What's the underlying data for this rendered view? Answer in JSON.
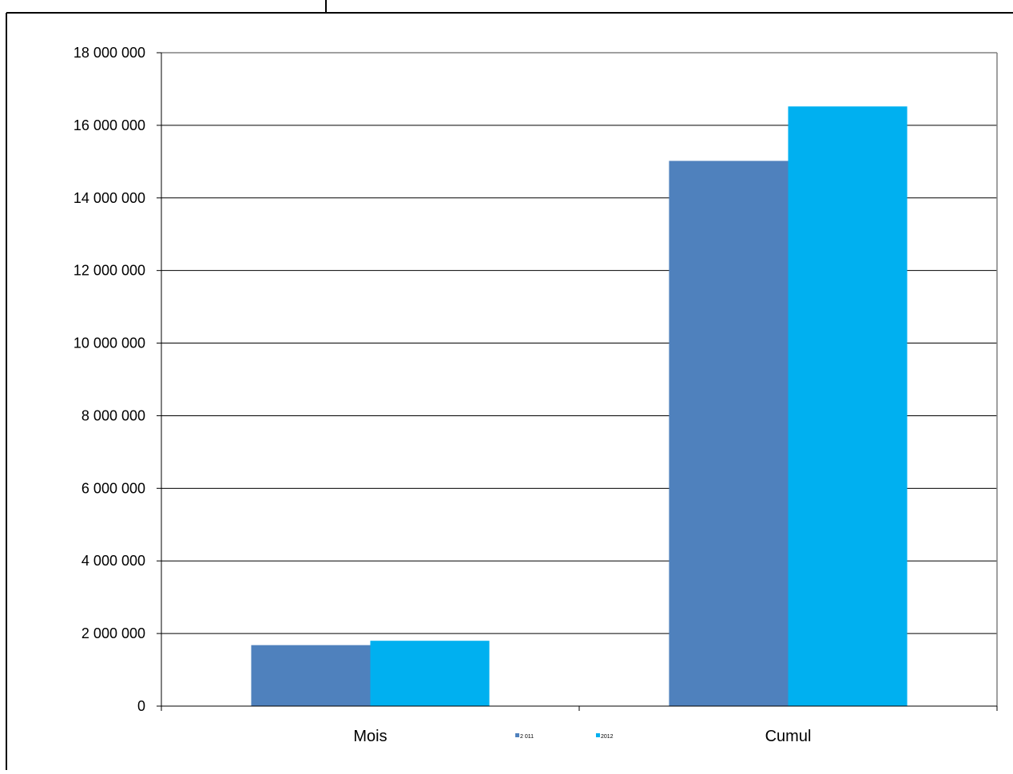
{
  "chart_data": {
    "type": "bar",
    "title": "",
    "xlabel": "",
    "ylabel": "",
    "categories": [
      "Mois",
      "Cumul"
    ],
    "series": [
      {
        "name": "2 011",
        "color": "#4f81bd",
        "values": [
          1680000,
          15020000
        ]
      },
      {
        "name": "2012",
        "color": "#00b0f0",
        "values": [
          1800000,
          16520000
        ]
      }
    ],
    "ylim": [
      0,
      18000000
    ],
    "yticks": [
      0,
      2000000,
      4000000,
      6000000,
      8000000,
      10000000,
      12000000,
      14000000,
      16000000,
      18000000
    ],
    "ytick_labels": [
      "0",
      "2 000 000",
      "4 000 000",
      "6 000 000",
      "8 000 000",
      "10 000 000",
      "12 000 000",
      "14 000 000",
      "16 000 000",
      "18 000 000"
    ],
    "grid": true,
    "legend_position": "bottom-center"
  }
}
